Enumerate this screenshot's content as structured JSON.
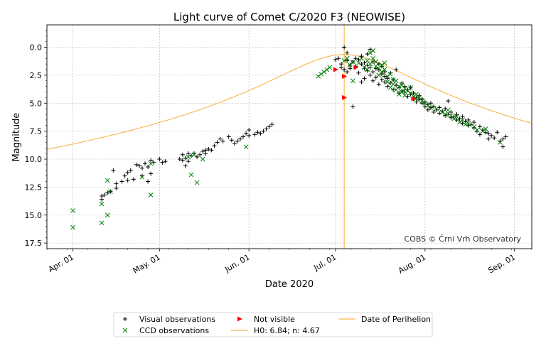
{
  "chart_data": {
    "type": "scatter",
    "title": "Light curve of Comet C/2020 F3 (NEOWISE)",
    "xlabel": "Date 2020",
    "ylabel": "Magnitude",
    "credit": "COBS © Črni Vrh Observatory",
    "x_tick_labels": [
      "Apr. 01",
      "May. 01",
      "Jun. 01",
      "Jul. 01",
      "Aug. 01",
      "Sep. 01"
    ],
    "x_tick_dates": [
      "2020-04-01",
      "2020-05-01",
      "2020-06-01",
      "2020-07-01",
      "2020-08-01",
      "2020-09-01"
    ],
    "xlim": [
      "2020-03-23",
      "2020-09-07"
    ],
    "y_ticks": [
      0.0,
      2.5,
      5.0,
      7.5,
      10.0,
      12.5,
      15.0,
      17.5
    ],
    "y_tick_labels": [
      "0.0",
      "2.5",
      "5.0",
      "7.5",
      "10.0",
      "12.5",
      "15.0",
      "17.5"
    ],
    "ylim": [
      18.0,
      -2.0
    ],
    "y_inverted": true,
    "grid": true,
    "legend_position": "bottom-center",
    "perihelion_date": "2020-07-04",
    "model": {
      "H0": 6.84,
      "n": 4.67
    },
    "legend": [
      {
        "key": "visual",
        "label": "Visual observations",
        "color": "#000000",
        "marker": "plus"
      },
      {
        "key": "ccd",
        "label": "CCD observations",
        "color": "#008000",
        "marker": "x"
      },
      {
        "key": "not_visible",
        "label": "Not visible",
        "color": "#ff0000",
        "marker": "triangle-right"
      },
      {
        "key": "model",
        "label": "H0: 6.84; n: 4.67",
        "color": "#f5a623",
        "marker": "line"
      },
      {
        "key": "perihelion",
        "label": "Date of Perihelion",
        "color": "#f5a623",
        "marker": "line"
      }
    ],
    "series": [
      {
        "name": "Visual observations",
        "color": "#000000",
        "points": [
          [
            "2020-04-11",
            13.6
          ],
          [
            "2020-04-11",
            13.3
          ],
          [
            "2020-04-12",
            13.2
          ],
          [
            "2020-04-13",
            13.0
          ],
          [
            "2020-04-14",
            12.9
          ],
          [
            "2020-04-15",
            11.0
          ],
          [
            "2020-04-16",
            12.6
          ],
          [
            "2020-04-16",
            12.2
          ],
          [
            "2020-04-18",
            12.0
          ],
          [
            "2020-04-19",
            11.5
          ],
          [
            "2020-04-20",
            11.9
          ],
          [
            "2020-04-20",
            11.2
          ],
          [
            "2020-04-21",
            11.0
          ],
          [
            "2020-04-22",
            11.8
          ],
          [
            "2020-04-23",
            10.5
          ],
          [
            "2020-04-24",
            10.6
          ],
          [
            "2020-04-25",
            11.5
          ],
          [
            "2020-04-25",
            10.8
          ],
          [
            "2020-04-26",
            10.4
          ],
          [
            "2020-04-27",
            10.7
          ],
          [
            "2020-04-27",
            12.0
          ],
          [
            "2020-04-28",
            11.3
          ],
          [
            "2020-04-28",
            10.1
          ],
          [
            "2020-04-29",
            10.3
          ],
          [
            "2020-05-01",
            10.0
          ],
          [
            "2020-05-02",
            10.3
          ],
          [
            "2020-05-03",
            10.2
          ],
          [
            "2020-05-08",
            10.0
          ],
          [
            "2020-05-09",
            9.6
          ],
          [
            "2020-05-09",
            10.1
          ],
          [
            "2020-05-10",
            10.6
          ],
          [
            "2020-05-10",
            9.9
          ],
          [
            "2020-05-11",
            9.5
          ],
          [
            "2020-05-11",
            10.2
          ],
          [
            "2020-05-12",
            9.7
          ],
          [
            "2020-05-13",
            9.5
          ],
          [
            "2020-05-14",
            9.8
          ],
          [
            "2020-05-15",
            9.6
          ],
          [
            "2020-05-16",
            9.3
          ],
          [
            "2020-05-17",
            9.5
          ],
          [
            "2020-05-17",
            9.2
          ],
          [
            "2020-05-18",
            9.1
          ],
          [
            "2020-05-19",
            9.2
          ],
          [
            "2020-05-20",
            8.8
          ],
          [
            "2020-05-21",
            8.5
          ],
          [
            "2020-05-22",
            8.2
          ],
          [
            "2020-05-23",
            8.4
          ],
          [
            "2020-05-25",
            8.0
          ],
          [
            "2020-05-26",
            8.3
          ],
          [
            "2020-05-27",
            8.6
          ],
          [
            "2020-05-28",
            8.4
          ],
          [
            "2020-05-29",
            8.2
          ],
          [
            "2020-05-30",
            8.0
          ],
          [
            "2020-05-31",
            7.7
          ],
          [
            "2020-06-01",
            7.9
          ],
          [
            "2020-06-01",
            7.4
          ],
          [
            "2020-06-03",
            7.8
          ],
          [
            "2020-06-04",
            7.6
          ],
          [
            "2020-06-05",
            7.7
          ],
          [
            "2020-06-06",
            7.5
          ],
          [
            "2020-06-07",
            7.3
          ],
          [
            "2020-06-08",
            7.1
          ],
          [
            "2020-06-09",
            6.9
          ],
          [
            "2020-07-01",
            1.1
          ],
          [
            "2020-07-02",
            1.0
          ],
          [
            "2020-07-03",
            1.5
          ],
          [
            "2020-07-03",
            1.8
          ],
          [
            "2020-07-04",
            0.0
          ],
          [
            "2020-07-04",
            2.0
          ],
          [
            "2020-07-05",
            1.2
          ],
          [
            "2020-07-05",
            0.5
          ],
          [
            "2020-07-05",
            2.2
          ],
          [
            "2020-07-06",
            1.6
          ],
          [
            "2020-07-06",
            1.9
          ],
          [
            "2020-07-07",
            5.3
          ],
          [
            "2020-07-07",
            1.3
          ],
          [
            "2020-07-08",
            1.0
          ],
          [
            "2020-07-08",
            1.7
          ],
          [
            "2020-07-09",
            1.1
          ],
          [
            "2020-07-09",
            2.3
          ],
          [
            "2020-07-10",
            3.1
          ],
          [
            "2020-07-10",
            1.5
          ],
          [
            "2020-07-10",
            0.8
          ],
          [
            "2020-07-11",
            1.9
          ],
          [
            "2020-07-11",
            1.4
          ],
          [
            "2020-07-11",
            2.8
          ],
          [
            "2020-07-12",
            1.6
          ],
          [
            "2020-07-12",
            2.1
          ],
          [
            "2020-07-12",
            0.6
          ],
          [
            "2020-07-13",
            2.5
          ],
          [
            "2020-07-13",
            1.8
          ],
          [
            "2020-07-13",
            0.2
          ],
          [
            "2020-07-14",
            2.2
          ],
          [
            "2020-07-14",
            1.3
          ],
          [
            "2020-07-14",
            3.0
          ],
          [
            "2020-07-15",
            2.7
          ],
          [
            "2020-07-15",
            1.9
          ],
          [
            "2020-07-16",
            2.0
          ],
          [
            "2020-07-16",
            3.3
          ],
          [
            "2020-07-16",
            1.5
          ],
          [
            "2020-07-17",
            2.4
          ],
          [
            "2020-07-17",
            2.9
          ],
          [
            "2020-07-17",
            1.7
          ],
          [
            "2020-07-18",
            2.6
          ],
          [
            "2020-07-18",
            3.1
          ],
          [
            "2020-07-18",
            2.2
          ],
          [
            "2020-07-19",
            3.5
          ],
          [
            "2020-07-19",
            2.8
          ],
          [
            "2020-07-20",
            2.3
          ],
          [
            "2020-07-20",
            3.2
          ],
          [
            "2020-07-21",
            3.8
          ],
          [
            "2020-07-21",
            2.9
          ],
          [
            "2020-07-22",
            3.4
          ],
          [
            "2020-07-22",
            2.0
          ],
          [
            "2020-07-23",
            3.6
          ],
          [
            "2020-07-23",
            4.1
          ],
          [
            "2020-07-24",
            3.2
          ],
          [
            "2020-07-24",
            3.9
          ],
          [
            "2020-07-25",
            4.0
          ],
          [
            "2020-07-25",
            3.5
          ],
          [
            "2020-07-26",
            4.4
          ],
          [
            "2020-07-26",
            3.8
          ],
          [
            "2020-07-27",
            4.2
          ],
          [
            "2020-07-27",
            3.6
          ],
          [
            "2020-07-28",
            4.6
          ],
          [
            "2020-07-28",
            4.1
          ],
          [
            "2020-07-29",
            4.5
          ],
          [
            "2020-07-29",
            4.9
          ],
          [
            "2020-07-30",
            4.7
          ],
          [
            "2020-07-30",
            4.3
          ],
          [
            "2020-07-31",
            5.0
          ],
          [
            "2020-07-31",
            4.6
          ],
          [
            "2020-08-01",
            4.9
          ],
          [
            "2020-08-01",
            5.3
          ],
          [
            "2020-08-02",
            5.1
          ],
          [
            "2020-08-02",
            5.6
          ],
          [
            "2020-08-03",
            5.4
          ],
          [
            "2020-08-03",
            5.0
          ],
          [
            "2020-08-04",
            5.8
          ],
          [
            "2020-08-04",
            5.3
          ],
          [
            "2020-08-05",
            5.6
          ],
          [
            "2020-08-06",
            5.9
          ],
          [
            "2020-08-06",
            5.4
          ],
          [
            "2020-08-07",
            5.7
          ],
          [
            "2020-08-08",
            6.1
          ],
          [
            "2020-08-08",
            5.5
          ],
          [
            "2020-08-09",
            4.8
          ],
          [
            "2020-08-09",
            6.0
          ],
          [
            "2020-08-10",
            6.3
          ],
          [
            "2020-08-10",
            5.8
          ],
          [
            "2020-08-11",
            6.2
          ],
          [
            "2020-08-12",
            6.5
          ],
          [
            "2020-08-12",
            6.0
          ],
          [
            "2020-08-13",
            6.4
          ],
          [
            "2020-08-14",
            6.8
          ],
          [
            "2020-08-14",
            6.2
          ],
          [
            "2020-08-15",
            6.6
          ],
          [
            "2020-08-16",
            7.0
          ],
          [
            "2020-08-16",
            6.5
          ],
          [
            "2020-08-17",
            6.9
          ],
          [
            "2020-08-18",
            7.2
          ],
          [
            "2020-08-18",
            6.7
          ],
          [
            "2020-08-19",
            7.5
          ],
          [
            "2020-08-20",
            7.8
          ],
          [
            "2020-08-20",
            7.1
          ],
          [
            "2020-08-21",
            7.4
          ],
          [
            "2020-08-22",
            7.6
          ],
          [
            "2020-08-23",
            8.2
          ],
          [
            "2020-08-23",
            7.7
          ],
          [
            "2020-08-24",
            7.9
          ],
          [
            "2020-08-25",
            8.1
          ],
          [
            "2020-08-26",
            7.6
          ],
          [
            "2020-08-27",
            8.4
          ],
          [
            "2020-08-28",
            8.9
          ],
          [
            "2020-08-28",
            8.2
          ],
          [
            "2020-08-29",
            8.0
          ]
        ]
      },
      {
        "name": "CCD observations",
        "color": "#008000",
        "points": [
          [
            "2020-04-01",
            14.6
          ],
          [
            "2020-04-01",
            16.1
          ],
          [
            "2020-04-11",
            15.7
          ],
          [
            "2020-04-11",
            14.0
          ],
          [
            "2020-04-13",
            15.0
          ],
          [
            "2020-04-13",
            11.9
          ],
          [
            "2020-04-14",
            12.9
          ],
          [
            "2020-04-25",
            11.6
          ],
          [
            "2020-04-28",
            10.4
          ],
          [
            "2020-04-28",
            13.2
          ],
          [
            "2020-05-11",
            9.8
          ],
          [
            "2020-05-12",
            11.4
          ],
          [
            "2020-05-13",
            9.6
          ],
          [
            "2020-05-14",
            12.1
          ],
          [
            "2020-05-16",
            10.0
          ],
          [
            "2020-05-31",
            8.9
          ],
          [
            "2020-06-25",
            2.6
          ],
          [
            "2020-06-26",
            2.4
          ],
          [
            "2020-06-27",
            2.2
          ],
          [
            "2020-06-28",
            2.0
          ],
          [
            "2020-06-29",
            1.8
          ],
          [
            "2020-07-04",
            1.2
          ],
          [
            "2020-07-05",
            1.0
          ],
          [
            "2020-07-06",
            1.6
          ],
          [
            "2020-07-07",
            3.0
          ],
          [
            "2020-07-07",
            1.3
          ],
          [
            "2020-07-09",
            1.4
          ],
          [
            "2020-07-10",
            1.0
          ],
          [
            "2020-07-11",
            1.8
          ],
          [
            "2020-07-12",
            2.0
          ],
          [
            "2020-07-12",
            1.2
          ],
          [
            "2020-07-13",
            0.5
          ],
          [
            "2020-07-13",
            1.5
          ],
          [
            "2020-07-14",
            1.0
          ],
          [
            "2020-07-14",
            0.3
          ],
          [
            "2020-07-15",
            1.7
          ],
          [
            "2020-07-15",
            1.3
          ],
          [
            "2020-07-16",
            1.9
          ],
          [
            "2020-07-16",
            2.5
          ],
          [
            "2020-07-17",
            2.2
          ],
          [
            "2020-07-17",
            1.6
          ],
          [
            "2020-07-18",
            2.0
          ],
          [
            "2020-07-18",
            1.4
          ],
          [
            "2020-07-19",
            2.6
          ],
          [
            "2020-07-19",
            3.1
          ],
          [
            "2020-07-20",
            2.4
          ],
          [
            "2020-07-20",
            3.6
          ],
          [
            "2020-07-21",
            2.9
          ],
          [
            "2020-07-21",
            3.3
          ],
          [
            "2020-07-22",
            3.0
          ],
          [
            "2020-07-22",
            3.8
          ],
          [
            "2020-07-23",
            4.2
          ],
          [
            "2020-07-23",
            3.5
          ],
          [
            "2020-07-24",
            3.4
          ],
          [
            "2020-07-24",
            4.0
          ],
          [
            "2020-07-25",
            4.3
          ],
          [
            "2020-07-25",
            3.7
          ],
          [
            "2020-07-26",
            3.9
          ],
          [
            "2020-07-27",
            4.1
          ],
          [
            "2020-07-27",
            3.6
          ],
          [
            "2020-07-28",
            4.4
          ],
          [
            "2020-07-29",
            4.6
          ],
          [
            "2020-07-29",
            4.2
          ],
          [
            "2020-07-30",
            4.5
          ],
          [
            "2020-07-31",
            4.8
          ],
          [
            "2020-08-01",
            5.0
          ],
          [
            "2020-08-02",
            5.2
          ],
          [
            "2020-08-03",
            5.4
          ],
          [
            "2020-08-05",
            5.5
          ],
          [
            "2020-08-07",
            5.8
          ],
          [
            "2020-08-08",
            6.0
          ],
          [
            "2020-08-09",
            5.6
          ],
          [
            "2020-08-10",
            6.1
          ],
          [
            "2020-08-11",
            6.4
          ],
          [
            "2020-08-12",
            6.2
          ],
          [
            "2020-08-13",
            6.7
          ],
          [
            "2020-08-14",
            6.5
          ],
          [
            "2020-08-15",
            6.9
          ],
          [
            "2020-08-16",
            6.8
          ],
          [
            "2020-08-18",
            7.1
          ],
          [
            "2020-08-19",
            7.4
          ],
          [
            "2020-08-21",
            7.5
          ],
          [
            "2020-08-22",
            7.3
          ],
          [
            "2020-08-27",
            8.5
          ]
        ]
      },
      {
        "name": "Not visible",
        "color": "#ff0000",
        "points": [
          [
            "2020-07-01",
            2.0
          ],
          [
            "2020-07-04",
            2.6
          ],
          [
            "2020-07-04",
            4.5
          ],
          [
            "2020-07-08",
            1.8
          ],
          [
            "2020-07-28",
            4.6
          ]
        ]
      }
    ]
  }
}
